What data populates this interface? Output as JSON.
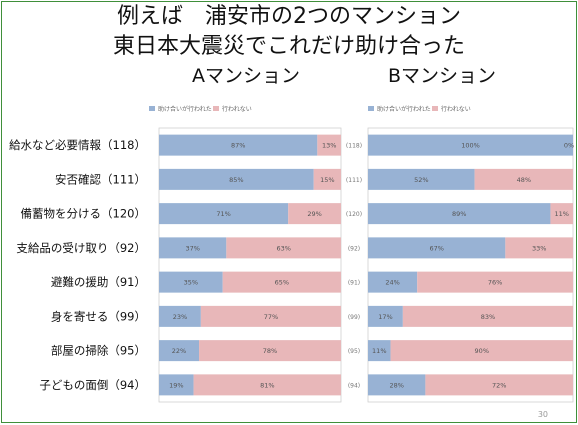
{
  "title_line1": "例えば　浦安市の2つのマンション",
  "title_line2": "東日本大震災でこれだけ助け合った",
  "colors": {
    "helped": "#98b2d4",
    "not_helped": "#e8b7b9",
    "frame": "#3f8f3a"
  },
  "page_number": "30",
  "chart_data": [
    {
      "type": "bar",
      "stacked": true,
      "orientation": "horizontal",
      "title": "Aマンション",
      "legend": [
        "助け合いが行われた",
        "行われない"
      ],
      "legend_position": "top-left",
      "categories": [
        "給水など必要情報（118）",
        "安否確認（111）",
        "備蓄物を分ける（120）",
        "支給品の受け取り（92）",
        "避難の援助（91）",
        "身を寄せる（99）",
        "部屋の掃除（95）",
        "子どもの面倒（94）"
      ],
      "series": [
        {
          "name": "助け合いが行われた",
          "values": [
            87,
            85,
            71,
            37,
            35,
            23,
            22,
            19
          ],
          "labels": [
            "87%",
            "85%",
            "71%",
            "37%",
            "35%",
            "23%",
            "22%",
            "19%"
          ]
        },
        {
          "name": "行われない",
          "values": [
            13,
            15,
            29,
            63,
            65,
            77,
            78,
            81
          ],
          "labels": [
            "13%",
            "15%",
            "29%",
            "63%",
            "65%",
            "77%",
            "78%",
            "81%"
          ]
        }
      ],
      "side_values": [
        "(118)",
        "(111)",
        "(120)",
        "(92)",
        "(91)",
        "(99)",
        "(95)",
        "(94)"
      ],
      "xlim": [
        0,
        100
      ]
    },
    {
      "type": "bar",
      "stacked": true,
      "orientation": "horizontal",
      "title": "Bマンション",
      "legend": [
        "助け合いが行われた",
        "行われない"
      ],
      "legend_position": "top-left",
      "series": [
        {
          "name": "助け合いが行われた",
          "values": [
            100,
            52,
            89,
            67,
            24,
            17,
            11,
            28
          ],
          "labels": [
            "100%",
            "52%",
            "89%",
            "67%",
            "24%",
            "17%",
            "11%",
            "28%"
          ]
        },
        {
          "name": "行われない",
          "values": [
            0,
            48,
            11,
            33,
            76,
            83,
            90,
            72
          ],
          "labels": [
            "0%",
            "48%",
            "11%",
            "33%",
            "76%",
            "83%",
            "90%",
            "72%"
          ]
        }
      ],
      "xlim": [
        0,
        100
      ]
    }
  ]
}
